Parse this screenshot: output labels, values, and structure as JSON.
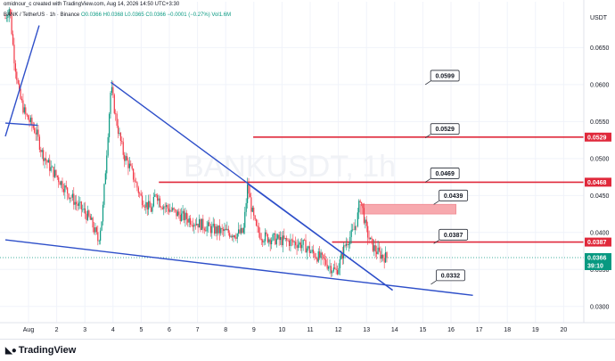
{
  "header": {
    "credit": "omidnour_c created with TradingView.com, Aug 14, 2026 14:50 UTC+3:30",
    "symbol": "BANK / TetherUS · 1h · Binance",
    "ohlc": "O0.0366 H0.0368 L0.0365 C0.0366 −0.0001 (−0.27%) Vol1.6M"
  },
  "watermark": "BANKUSDT, 1h",
  "currency": "USDT",
  "footer": {
    "brand": "TradingView",
    "logo_icon": "tradingview-logo-icon"
  },
  "colors": {
    "up": "#089981",
    "down": "#f23645",
    "trendline": "#2e4fc9",
    "level": "#e0293b",
    "zone": "#f7a9ae",
    "last": "#089981"
  },
  "chart_data": {
    "type": "candlestick",
    "x_ticks": [
      "Aug",
      "2",
      "3",
      "4",
      "5",
      "6",
      "7",
      "8",
      "9",
      "10",
      "11",
      "12",
      "13",
      "14",
      "15",
      "16",
      "17",
      "18",
      "19",
      "20"
    ],
    "y_ticks": [
      "0.0650",
      "0.0600",
      "0.0550",
      "0.0500",
      "0.0450",
      "0.0400",
      "0.0350",
      "0.0300"
    ],
    "ylim": [
      0.0278,
      0.0712
    ],
    "levels": [
      {
        "label": "0.0529",
        "value": 0.0529,
        "from_day": 9.8
      },
      {
        "label": "0.0468",
        "value": 0.0468,
        "from_day": 6.45
      },
      {
        "label": "0.0387",
        "value": 0.0387,
        "from_day": 12.6
      }
    ],
    "callouts": [
      {
        "label": "0.0599",
        "day": 16.1,
        "value": 0.0612
      },
      {
        "label": "0.0529",
        "day": 16.1,
        "value": 0.054
      },
      {
        "label": "0.0469",
        "day": 16.1,
        "value": 0.048
      },
      {
        "label": "0.0439",
        "day": 16.4,
        "value": 0.045
      },
      {
        "label": "0.0387",
        "day": 16.4,
        "value": 0.0397
      },
      {
        "label": "0.0332",
        "day": 16.3,
        "value": 0.0342
      }
    ],
    "zone": {
      "from_day": 13.6,
      "to_day": 17.0,
      "low": 0.0425,
      "high": 0.0438
    },
    "trendlines": [
      {
        "from": [
          1.0,
          0.039
        ],
        "to": [
          17.6,
          0.0315
        ]
      },
      {
        "from": [
          4.75,
          0.0603
        ],
        "to": [
          14.75,
          0.0322
        ]
      },
      {
        "from": [
          9.6,
          0.0466
        ],
        "to": [
          14.75,
          0.0322
        ]
      },
      {
        "from": [
          1.0,
          0.053
        ],
        "to": [
          2.2,
          0.068
        ]
      },
      {
        "from": [
          1.0,
          0.0548
        ],
        "to": [
          2.15,
          0.0545
        ]
      }
    ],
    "last_price": {
      "label": "0.0366",
      "countdown": "39:10",
      "value": 0.0366
    },
    "level_badges": [
      {
        "label": "0.0529",
        "value": 0.0529
      },
      {
        "label": "0.0468",
        "value": 0.0468
      },
      {
        "label": "0.0387",
        "value": 0.0387
      }
    ],
    "path": [
      [
        1.0,
        0.069
      ],
      [
        1.15,
        0.0705
      ],
      [
        1.3,
        0.064
      ],
      [
        1.5,
        0.0585
      ],
      [
        1.7,
        0.056
      ],
      [
        1.9,
        0.0548
      ],
      [
        2.1,
        0.0535
      ],
      [
        2.3,
        0.0508
      ],
      [
        2.6,
        0.0487
      ],
      [
        2.9,
        0.0472
      ],
      [
        3.2,
        0.0455
      ],
      [
        3.5,
        0.044
      ],
      [
        3.8,
        0.0428
      ],
      [
        4.0,
        0.0418
      ],
      [
        4.2,
        0.04
      ],
      [
        4.3,
        0.0388
      ],
      [
        4.45,
        0.0425
      ],
      [
        4.6,
        0.051
      ],
      [
        4.75,
        0.0598
      ],
      [
        4.9,
        0.056
      ],
      [
        5.05,
        0.053
      ],
      [
        5.2,
        0.0505
      ],
      [
        5.4,
        0.049
      ],
      [
        5.6,
        0.047
      ],
      [
        5.8,
        0.0448
      ],
      [
        6.0,
        0.0438
      ],
      [
        6.2,
        0.043
      ],
      [
        6.35,
        0.0455
      ],
      [
        6.5,
        0.044
      ],
      [
        6.8,
        0.0432
      ],
      [
        7.1,
        0.0425
      ],
      [
        7.4,
        0.042
      ],
      [
        7.7,
        0.0415
      ],
      [
        8.0,
        0.041
      ],
      [
        8.3,
        0.0405
      ],
      [
        8.6,
        0.0402
      ],
      [
        8.9,
        0.04
      ],
      [
        9.2,
        0.0398
      ],
      [
        9.45,
        0.04
      ],
      [
        9.6,
        0.0463
      ],
      [
        9.75,
        0.043
      ],
      [
        9.9,
        0.0405
      ],
      [
        10.1,
        0.0395
      ],
      [
        10.4,
        0.0392
      ],
      [
        10.7,
        0.039
      ],
      [
        11.0,
        0.0388
      ],
      [
        11.3,
        0.0386
      ],
      [
        11.6,
        0.0383
      ],
      [
        11.9,
        0.0372
      ],
      [
        12.2,
        0.0365
      ],
      [
        12.5,
        0.0355
      ],
      [
        12.75,
        0.0347
      ],
      [
        12.9,
        0.0362
      ],
      [
        13.05,
        0.0382
      ],
      [
        13.2,
        0.0392
      ],
      [
        13.35,
        0.04
      ],
      [
        13.5,
        0.042
      ],
      [
        13.6,
        0.0448
      ],
      [
        13.7,
        0.0428
      ],
      [
        13.8,
        0.0405
      ],
      [
        13.95,
        0.0388
      ],
      [
        14.1,
        0.0378
      ],
      [
        14.25,
        0.0372
      ],
      [
        14.4,
        0.0368
      ],
      [
        14.55,
        0.0366
      ]
    ]
  }
}
